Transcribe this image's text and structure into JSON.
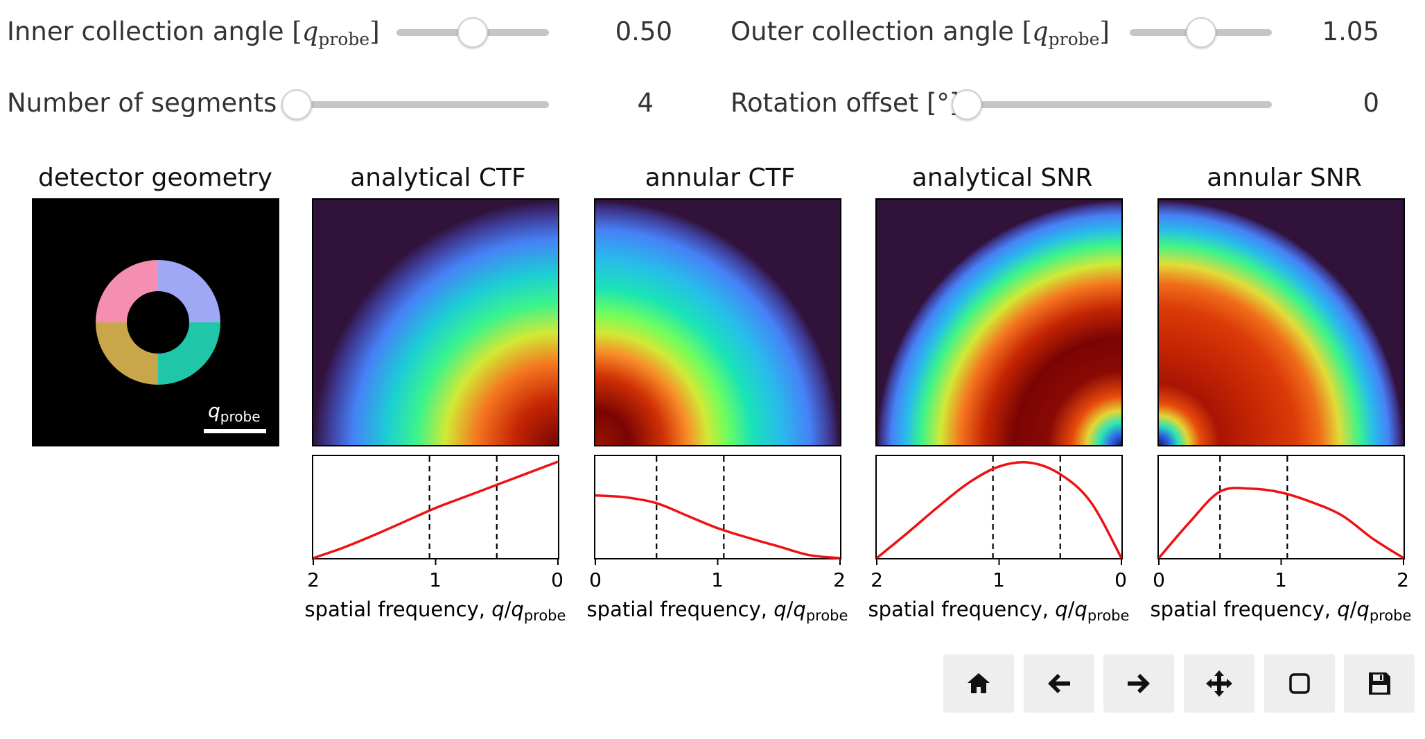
{
  "controls": {
    "inner_angle": {
      "label": "Inner collection angle",
      "unit_sym": "q",
      "unit_sub": "probe",
      "value": "0.50",
      "fraction": 0.5
    },
    "outer_angle": {
      "label": "Outer collection angle",
      "unit_sym": "q",
      "unit_sub": "probe",
      "value": "1.05",
      "fraction": 0.5
    },
    "segments": {
      "label": "Number of segments",
      "value": "4",
      "fraction": 0.0
    },
    "rotation": {
      "label": "Rotation offset [°]",
      "value": "0",
      "fraction": 0.0
    }
  },
  "panels": {
    "detector": {
      "title": "detector geometry",
      "scalebar_sym": "q",
      "scalebar_sub": "probe",
      "segment_colors": [
        "#f48fb1",
        "#9fa8f4",
        "#c9a64a",
        "#1fc7a8"
      ]
    },
    "analytical_ctf": {
      "title": "analytical CTF"
    },
    "annular_ctf": {
      "title": "annular CTF"
    },
    "analytical_snr": {
      "title": "analytical SNR"
    },
    "annular_snr": {
      "title": "annular SNR"
    }
  },
  "axis": {
    "label_prefix": "spatial frequency, ",
    "label_q": "q",
    "label_slash": "/",
    "label_qp": "q",
    "label_sub": "probe",
    "ticks_desc": [
      "2",
      "1",
      "0"
    ],
    "ticks_asc": [
      "0",
      "1",
      "2"
    ]
  },
  "chart_data": [
    {
      "type": "line",
      "title": "analytical CTF",
      "xlabel": "spatial frequency, q/qprobe",
      "x": [
        0,
        0.25,
        0.5,
        0.75,
        1.0,
        1.25,
        1.5,
        1.75,
        2.0
      ],
      "y": [
        1.0,
        0.88,
        0.76,
        0.64,
        0.52,
        0.38,
        0.24,
        0.11,
        0.0
      ],
      "xlim": [
        2,
        0
      ],
      "vlines": [
        0.5,
        1.05
      ],
      "color": "#ee1111"
    },
    {
      "type": "line",
      "title": "annular CTF",
      "xlabel": "spatial frequency, q/qprobe",
      "x": [
        0,
        0.25,
        0.5,
        0.75,
        1.0,
        1.25,
        1.5,
        1.75,
        2.0
      ],
      "y": [
        0.65,
        0.63,
        0.57,
        0.44,
        0.31,
        0.21,
        0.12,
        0.03,
        0.0
      ],
      "xlim": [
        0,
        2
      ],
      "vlines": [
        0.5,
        1.05
      ],
      "color": "#ee1111"
    },
    {
      "type": "line",
      "title": "analytical SNR",
      "xlabel": "spatial frequency, q/qprobe",
      "x": [
        0,
        0.25,
        0.5,
        0.75,
        1.0,
        1.25,
        1.5,
        1.75,
        2.0
      ],
      "y": [
        0.0,
        0.58,
        0.87,
        0.99,
        0.95,
        0.78,
        0.53,
        0.26,
        0.0
      ],
      "xlim": [
        2,
        0
      ],
      "vlines": [
        0.5,
        1.05
      ],
      "color": "#ee1111"
    },
    {
      "type": "line",
      "title": "annular SNR",
      "xlabel": "spatial frequency, q/qprobe",
      "x": [
        0,
        0.25,
        0.5,
        0.75,
        1.0,
        1.25,
        1.5,
        1.75,
        2.0
      ],
      "y": [
        0.0,
        0.37,
        0.69,
        0.72,
        0.68,
        0.58,
        0.44,
        0.2,
        0.0
      ],
      "xlim": [
        0,
        2
      ],
      "vlines": [
        0.5,
        1.05
      ],
      "color": "#ee1111"
    }
  ],
  "toolbar": [
    {
      "name": "home-icon"
    },
    {
      "name": "back-arrow-icon"
    },
    {
      "name": "forward-arrow-icon"
    },
    {
      "name": "pan-icon"
    },
    {
      "name": "zoom-rect-icon"
    },
    {
      "name": "save-icon"
    }
  ]
}
